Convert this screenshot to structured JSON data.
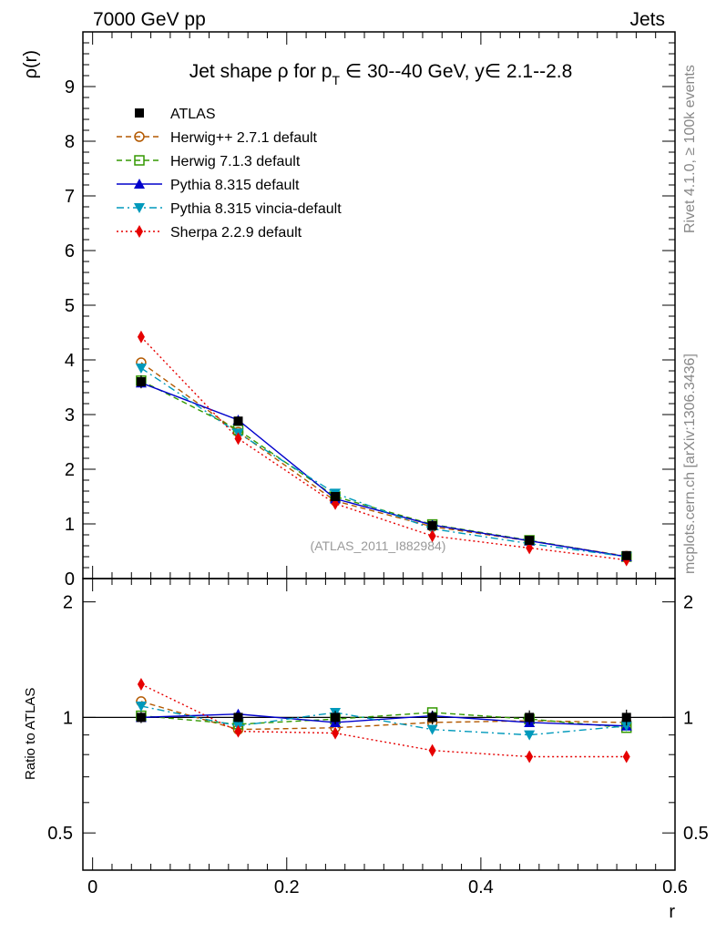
{
  "header": {
    "left_label": "7000 GeV pp",
    "right_label": "Jets"
  },
  "side_labels": {
    "rivet": "Rivet 4.1.0, ≥ 100k events",
    "mcplots": "mcplots.cern.ch [arXiv:1306.3436]"
  },
  "chart_data": {
    "type": "line",
    "title_parts": {
      "prefix": "Jet shape ρ for p",
      "subscript": "T",
      "suffix": " ∈ 30--40 GeV, y∈ 2.1--2.8"
    },
    "ylabel_main": "ρ(r)",
    "ylabel_ratio": "Ratio to ATLAS",
    "xlabel": "r",
    "watermark": "(ATLAS_2011_I882984)",
    "xlim": [
      -0.01,
      0.6
    ],
    "ylim_main": [
      0,
      10
    ],
    "ylim_ratio": [
      0.4,
      2.3
    ],
    "xticks": [
      "0",
      "0.2",
      "0.4",
      "0.6"
    ],
    "xtick_values": [
      0,
      0.2,
      0.4,
      0.6
    ],
    "yticks_main": [
      "0",
      "1",
      "2",
      "3",
      "4",
      "5",
      "6",
      "7",
      "8",
      "9"
    ],
    "ytick_values_main": [
      0,
      1,
      2,
      3,
      4,
      5,
      6,
      7,
      8,
      9
    ],
    "yticks_ratio": [
      "0.5",
      "1",
      "2"
    ],
    "ytick_values_ratio": [
      0.5,
      1,
      2
    ],
    "x": [
      0.05,
      0.15,
      0.25,
      0.35,
      0.45,
      0.55
    ],
    "series": [
      {
        "name": "ATLAS",
        "style": "data",
        "color": "#000000",
        "marker": "square-filled",
        "values": [
          3.6,
          2.88,
          1.5,
          0.97,
          0.7,
          0.42
        ],
        "errors": [
          0.12,
          0.08,
          0.06,
          0.04,
          0.03,
          0.02
        ],
        "ratio": [
          1.0,
          1.0,
          1.0,
          1.0,
          1.0,
          1.0
        ]
      },
      {
        "name": "Herwig++ 2.7.1 default",
        "style": "dashed",
        "color": "#b35900",
        "marker": "circle-open",
        "values": [
          3.95,
          2.68,
          1.42,
          0.95,
          0.69,
          0.41
        ],
        "ratio": [
          1.1,
          0.93,
          0.94,
          0.97,
          0.98,
          0.97
        ]
      },
      {
        "name": "Herwig 7.1.3 default",
        "style": "dashed",
        "color": "#339900",
        "marker": "square-open",
        "values": [
          3.62,
          2.72,
          1.5,
          0.99,
          0.7,
          0.4
        ],
        "ratio": [
          1.01,
          0.96,
          0.99,
          1.03,
          0.99,
          0.94
        ]
      },
      {
        "name": "Pythia 8.315 default",
        "style": "solid",
        "color": "#0000cc",
        "marker": "triangle-up",
        "values": [
          3.58,
          2.9,
          1.46,
          0.98,
          0.69,
          0.4
        ],
        "ratio": [
          1.0,
          1.02,
          0.97,
          1.01,
          0.97,
          0.95
        ]
      },
      {
        "name": "Pythia 8.315 vincia-default",
        "style": "dashdot",
        "color": "#0099bb",
        "marker": "triangle-down",
        "values": [
          3.85,
          2.66,
          1.56,
          0.91,
          0.64,
          0.4
        ],
        "ratio": [
          1.07,
          0.95,
          1.03,
          0.93,
          0.9,
          0.95
        ]
      },
      {
        "name": "Sherpa 2.2.9 default",
        "style": "dotted",
        "color": "#e60000",
        "marker": "diamond",
        "values": [
          4.42,
          2.56,
          1.37,
          0.78,
          0.56,
          0.34
        ],
        "ratio": [
          1.22,
          0.92,
          0.91,
          0.82,
          0.79,
          0.79
        ]
      }
    ]
  }
}
